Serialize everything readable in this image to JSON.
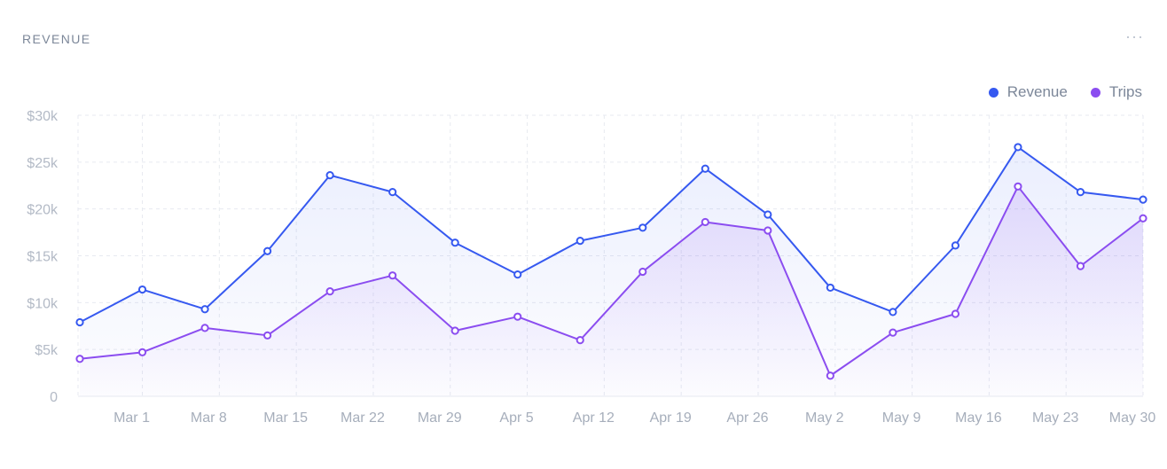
{
  "card": {
    "title": "REVENUE",
    "menu_icon": "more-horizontal-icon"
  },
  "colors": {
    "revenue": "#3659f0",
    "trips": "#8b4df0",
    "grid": "#e7eaf0",
    "axis_text": "#a6aebb"
  },
  "chart_data": {
    "type": "area",
    "title": "REVENUE",
    "xlabel": "",
    "ylabel": "",
    "ylim": [
      0,
      30000
    ],
    "y_ticks": [
      {
        "value": 0,
        "label": "0"
      },
      {
        "value": 5000,
        "label": "$5k"
      },
      {
        "value": 10000,
        "label": "$10k"
      },
      {
        "value": 15000,
        "label": "$15k"
      },
      {
        "value": 20000,
        "label": "$20k"
      },
      {
        "value": 25000,
        "label": "$25k"
      },
      {
        "value": 30000,
        "label": "$30k"
      }
    ],
    "x_tick_labels": [
      "Mar 1",
      "Mar 8",
      "Mar 15",
      "Mar 22",
      "Mar 29",
      "Apr 5",
      "Apr 12",
      "Apr 19",
      "Apr 26",
      "May 2",
      "May 9",
      "May 16",
      "May 23",
      "May 30"
    ],
    "grid": true,
    "legend_position": "top-right",
    "series": [
      {
        "name": "Revenue",
        "color": "#3659f0",
        "values": [
          7900,
          11400,
          9300,
          15500,
          23600,
          21800,
          16400,
          13000,
          16600,
          18000,
          24300,
          19400,
          11600,
          9000,
          16100,
          26600,
          21800,
          21000
        ]
      },
      {
        "name": "Trips",
        "color": "#8b4df0",
        "values": [
          4000,
          4700,
          7300,
          6500,
          11200,
          12900,
          7000,
          8500,
          6000,
          13300,
          18600,
          17700,
          2200,
          6800,
          8800,
          22400,
          13900,
          19000
        ]
      }
    ]
  }
}
